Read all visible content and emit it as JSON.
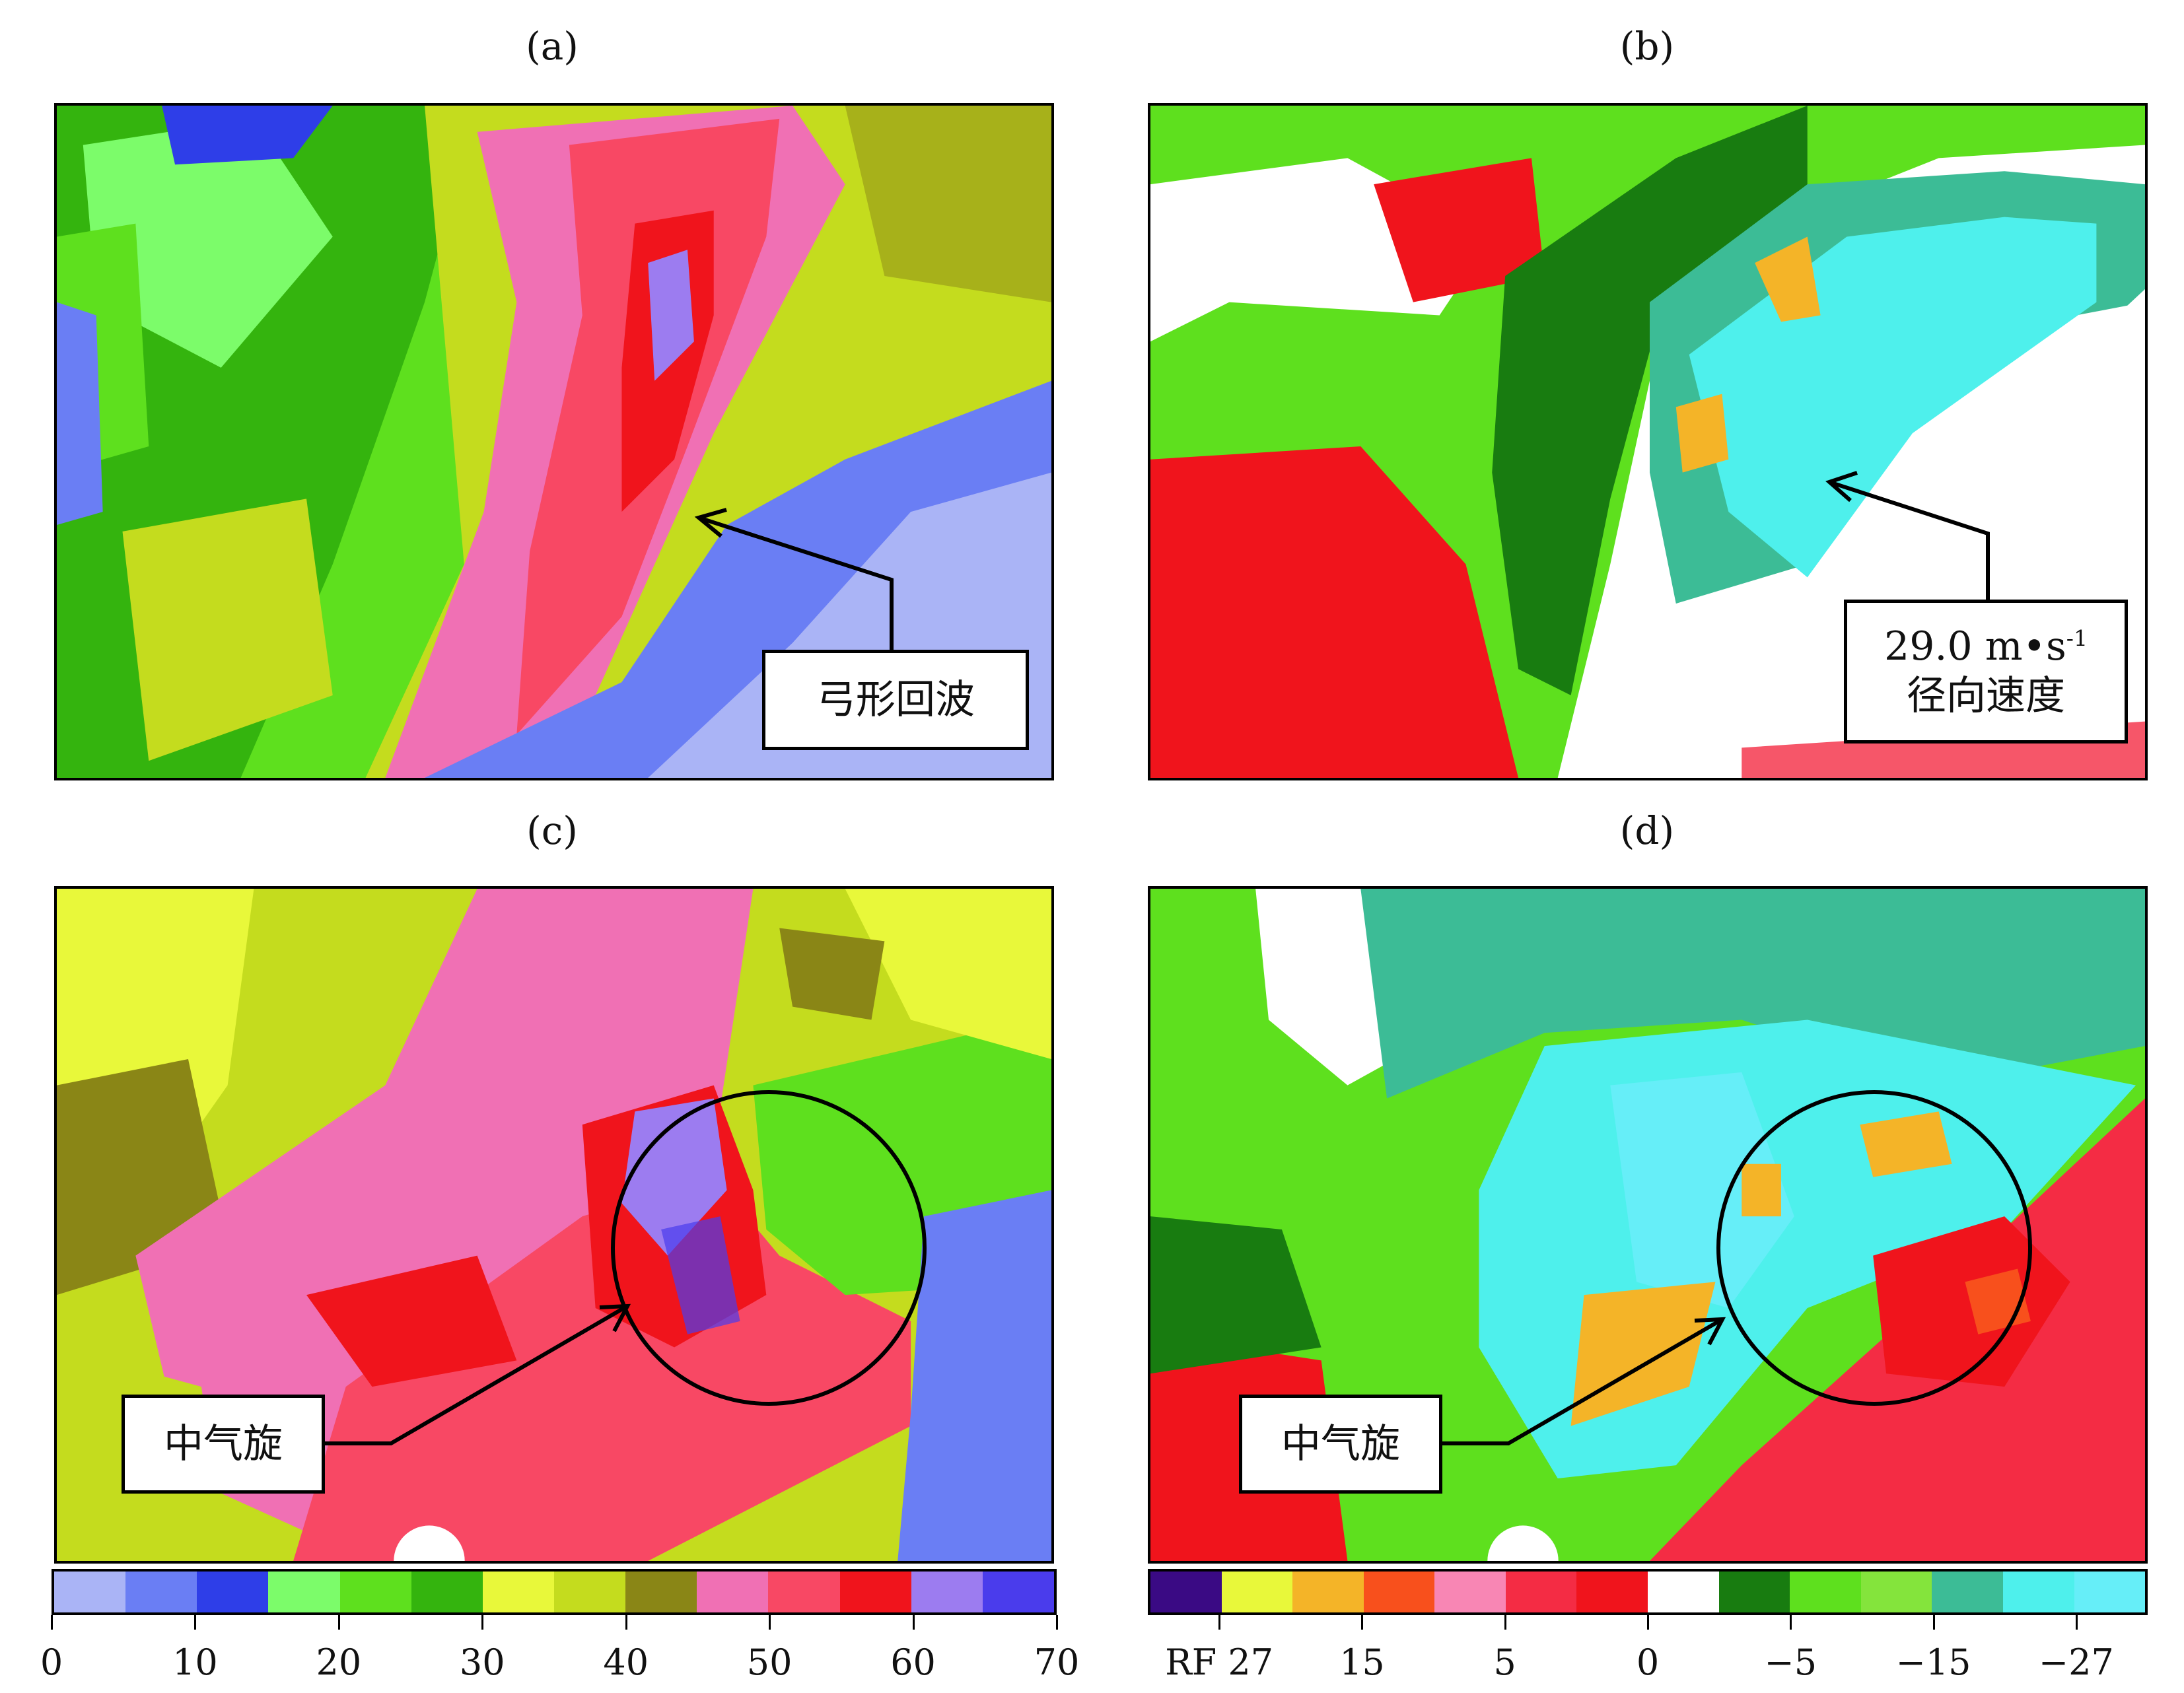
{
  "panels": {
    "a": {
      "label": "(a)",
      "annotation": "弓形回波"
    },
    "b": {
      "label": "(b)",
      "annotation_line1": "29.0 m•s",
      "annotation_sup": "-1",
      "annotation_line2": "径向速度"
    },
    "c": {
      "label": "(c)",
      "annotation": "中气旋"
    },
    "d": {
      "label": "(d)",
      "annotation": "中气旋"
    }
  },
  "reflectivity_colorbar": {
    "colors": [
      "#aab4f6",
      "#6a7ef4",
      "#2e3ee8",
      "#7cfc6a",
      "#5ee01e",
      "#34b40e",
      "#e8f83a",
      "#c4dc1e",
      "#8a8616",
      "#f070b4",
      "#f84864",
      "#f0141c",
      "#9c7cf0",
      "#4a3cec"
    ],
    "ticks": [
      "0",
      "10",
      "20",
      "30",
      "40",
      "50",
      "60",
      "70"
    ]
  },
  "velocity_colorbar": {
    "colors": [
      "#3a0a84",
      "#e8f83a",
      "#f4b428",
      "#f8501c",
      "#f886b4",
      "#f42c44",
      "#f0141c",
      "#ffffff",
      "#187c10",
      "#5ee01e",
      "#84e43c",
      "#3cbc96",
      "#4ef0ec",
      "#66eef8"
    ],
    "ticks": [
      "RF 27",
      "15",
      "5",
      "0",
      "−5",
      "−15",
      "−27"
    ]
  }
}
